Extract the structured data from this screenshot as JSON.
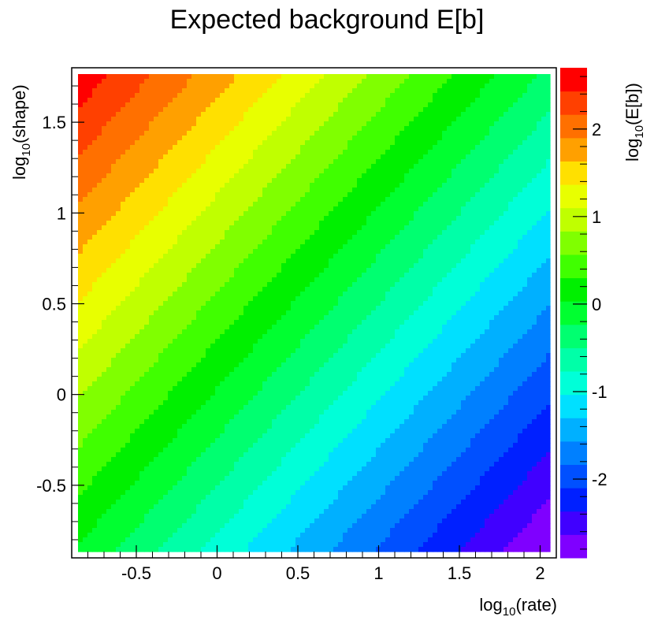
{
  "chart_data": {
    "type": "heatmap",
    "title": "Expected background E[b]",
    "xlabel": {
      "base": "log",
      "sub": "10",
      "rest": "(rate)"
    },
    "ylabel": {
      "base": "log",
      "sub": "10",
      "rest": "(shape)"
    },
    "zlabel": {
      "base": "log",
      "sub": "10",
      "rest": "(E[b])"
    },
    "xlim": [
      -0.9,
      2.1
    ],
    "ylim": [
      -0.9,
      1.8
    ],
    "zlim": [
      -2.9,
      2.7
    ],
    "x_ticks": [
      -0.5,
      0,
      0.5,
      1,
      1.5,
      2
    ],
    "x_tick_labels": [
      "-0.5",
      "0",
      "0.5",
      "1",
      "1.5",
      "2"
    ],
    "y_ticks": [
      -0.5,
      0,
      0.5,
      1,
      1.5
    ],
    "y_tick_labels": [
      "-0.5",
      "0",
      "0.5",
      "1",
      "1.5"
    ],
    "z_ticks": [
      -2,
      -1,
      0,
      1,
      2
    ],
    "z_tick_labels": [
      "-2",
      "-1",
      "0",
      "1",
      "2"
    ],
    "model": "log10(E[b]) = log10(shape) - log10(rate)",
    "contour_levels": 20,
    "colors": [
      "#7F00FF",
      "#4000FF",
      "#0020FF",
      "#0050FF",
      "#0080FF",
      "#00B0FF",
      "#00E0FF",
      "#00FFD8",
      "#00FFA8",
      "#00FF70",
      "#00FF30",
      "#00F000",
      "#40FF00",
      "#80FF00",
      "#C0FF00",
      "#E8FF00",
      "#FFE000",
      "#FFA000",
      "#FF7000",
      "#FF4000",
      "#FF0000"
    ]
  }
}
